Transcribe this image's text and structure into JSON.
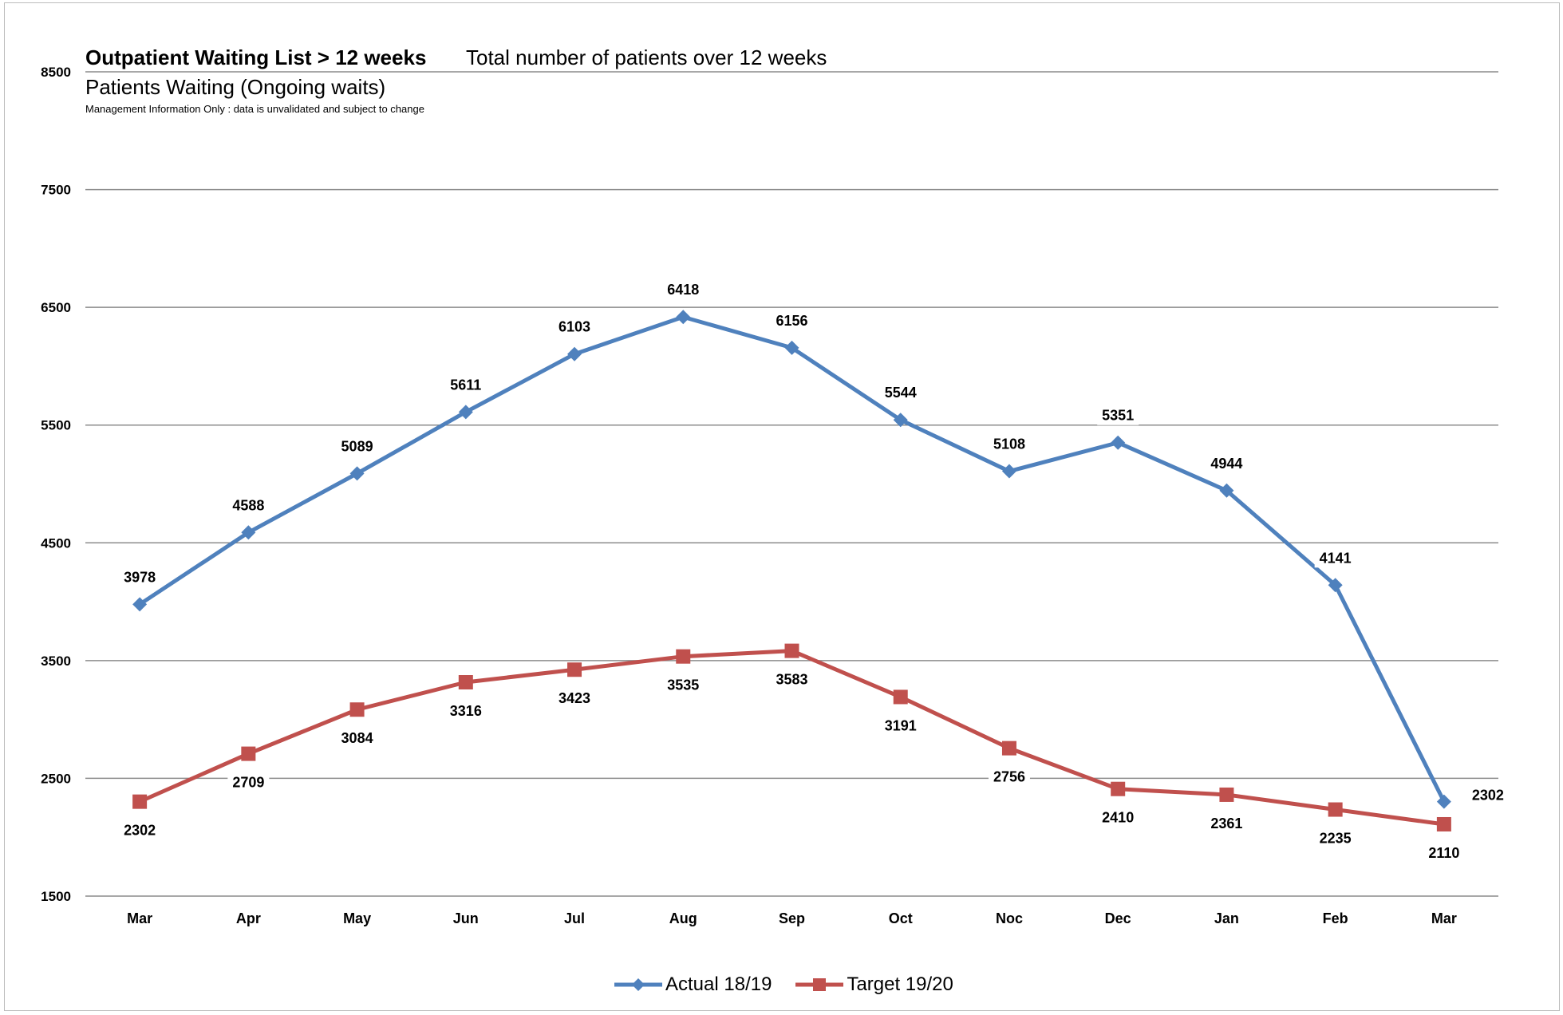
{
  "title": "Outpatient Waiting List > 12 weeks",
  "title_right": "Total number of patients over 12 weeks",
  "subtitle": "Patients Waiting (Ongoing waits)",
  "note": "Management Information Only : data is unvalidated and subject to change",
  "colors": {
    "actual": "#4F81BD",
    "target": "#C0504D",
    "grid": "#8c8c8c"
  },
  "chart_data": {
    "type": "line",
    "categories": [
      "Mar",
      "Apr",
      "May",
      "Jun",
      "Jul",
      "Aug",
      "Sep",
      "Oct",
      "Noc",
      "Dec",
      "Jan",
      "Feb",
      "Mar"
    ],
    "series": [
      {
        "name": "Actual 18/19",
        "marker": "diamond",
        "values": [
          3978,
          4588,
          5089,
          5611,
          6103,
          6418,
          6156,
          5544,
          5108,
          5351,
          4944,
          4141,
          2302
        ]
      },
      {
        "name": "Target 19/20",
        "marker": "square",
        "values": [
          2302,
          2709,
          3084,
          3316,
          3423,
          3535,
          3583,
          3191,
          2756,
          2410,
          2361,
          2235,
          2110
        ]
      }
    ],
    "yticks": [
      1500,
      2500,
      3500,
      4500,
      5500,
      6500,
      7500,
      8500
    ],
    "ylim": [
      1500,
      8500
    ],
    "grid": true,
    "legend": "bottom-center",
    "data_labels": true
  }
}
